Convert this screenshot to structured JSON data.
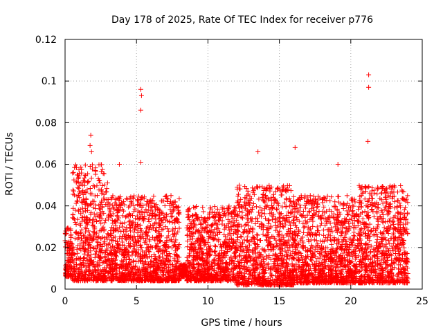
{
  "chart_data": {
    "type": "scatter",
    "title": "Day 178 of 2025, Rate Of TEC Index for receiver p776",
    "xlabel": "GPS time / hours",
    "ylabel": "ROTI / TECUs",
    "xlim": [
      0,
      25
    ],
    "ylim": [
      0,
      0.12
    ],
    "x_ticks": [
      "0",
      "5",
      "10",
      "15",
      "20",
      "25"
    ],
    "y_ticks": [
      "0",
      "0.02",
      "0.04",
      "0.06",
      "0.08",
      "0.1",
      "0.12"
    ],
    "grid": true,
    "marker": "+",
    "color": "#ff0000",
    "series": [
      {
        "highlighted_points": [
          {
            "x": 1.8,
            "y": 0.074
          },
          {
            "x": 1.75,
            "y": 0.069
          },
          {
            "x": 1.85,
            "y": 0.066
          },
          {
            "x": 5.3,
            "y": 0.096
          },
          {
            "x": 5.35,
            "y": 0.093
          },
          {
            "x": 5.3,
            "y": 0.086
          },
          {
            "x": 13.5,
            "y": 0.066
          },
          {
            "x": 16.1,
            "y": 0.068
          },
          {
            "x": 21.25,
            "y": 0.103
          },
          {
            "x": 21.25,
            "y": 0.097
          },
          {
            "x": 21.2,
            "y": 0.071
          },
          {
            "x": 19.1,
            "y": 0.06
          },
          {
            "x": 3.8,
            "y": 0.06
          },
          {
            "x": 5.3,
            "y": 0.061
          }
        ],
        "bulk_bands": [
          {
            "x_start": 0.0,
            "x_end": 0.5,
            "y_low": 0.006,
            "y_high": 0.03
          },
          {
            "x_start": 0.5,
            "x_end": 3.0,
            "y_low": 0.004,
            "y_high": 0.06
          },
          {
            "x_start": 3.0,
            "x_end": 8.0,
            "y_low": 0.004,
            "y_high": 0.045
          },
          {
            "x_start": 8.0,
            "x_end": 8.5,
            "y_low": 0.006,
            "y_high": 0.012
          },
          {
            "x_start": 8.5,
            "x_end": 12.0,
            "y_low": 0.004,
            "y_high": 0.04
          },
          {
            "x_start": 12.0,
            "x_end": 16.0,
            "y_low": 0.002,
            "y_high": 0.05
          },
          {
            "x_start": 16.0,
            "x_end": 20.5,
            "y_low": 0.003,
            "y_high": 0.045
          },
          {
            "x_start": 20.5,
            "x_end": 24.0,
            "y_low": 0.003,
            "y_high": 0.05
          }
        ]
      }
    ]
  }
}
